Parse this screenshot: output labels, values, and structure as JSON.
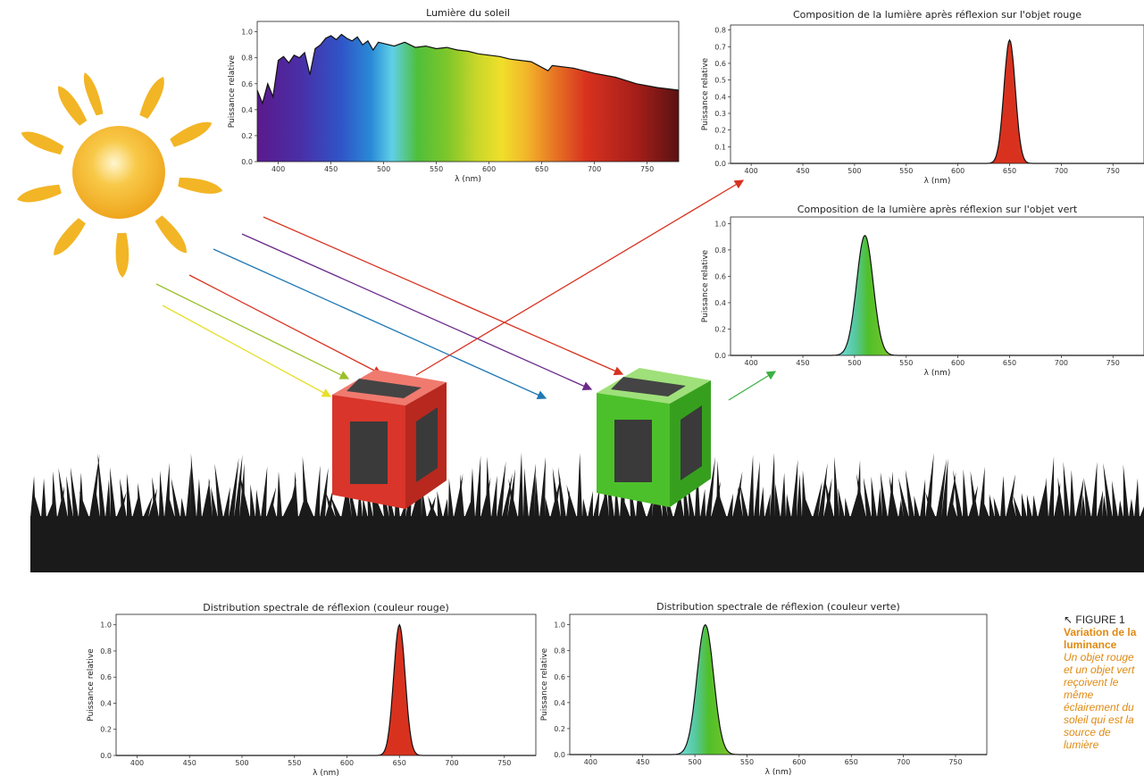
{
  "colors": {
    "sun": "#f2b525",
    "ground": "#1a1a1a",
    "red_cube": "#d9352a",
    "green_cube": "#4cc02a",
    "caption_orange": "#e08a12",
    "arrow_red": "#d8321f",
    "arrow_purple": "#6a2a8a",
    "arrow_blue": "#1f78b4",
    "arrow_yellowgreen": "#9bbf2a",
    "arrow_yellow": "#e6df2a",
    "arrow_green": "#3cb043"
  },
  "icons": [
    "sun-icon",
    "red-cube-icon",
    "green-cube-icon",
    "grass-silhouette"
  ],
  "chart_data": [
    {
      "id": "sun",
      "type": "area",
      "title": "Lumière du soleil",
      "xlabel": "λ (nm)",
      "ylabel": "Puissance relative",
      "xlim": [
        380,
        780
      ],
      "ylim": [
        0,
        1.08
      ],
      "xticks": [
        400,
        450,
        500,
        550,
        600,
        650,
        700,
        750
      ],
      "yticks": [
        0.0,
        0.2,
        0.4,
        0.6,
        0.8,
        1.0
      ],
      "fill": "spectrum",
      "x": [
        380,
        385,
        390,
        395,
        400,
        405,
        410,
        415,
        420,
        425,
        430,
        435,
        440,
        445,
        450,
        455,
        460,
        465,
        470,
        475,
        480,
        485,
        490,
        495,
        500,
        510,
        520,
        530,
        540,
        550,
        560,
        570,
        580,
        590,
        600,
        610,
        620,
        640,
        656,
        660,
        680,
        700,
        720,
        740,
        760,
        780
      ],
      "y": [
        0.55,
        0.45,
        0.6,
        0.5,
        0.78,
        0.81,
        0.76,
        0.82,
        0.8,
        0.84,
        0.67,
        0.87,
        0.9,
        0.95,
        0.97,
        0.94,
        0.98,
        0.95,
        0.93,
        0.96,
        0.9,
        0.93,
        0.86,
        0.92,
        0.91,
        0.89,
        0.92,
        0.88,
        0.89,
        0.87,
        0.88,
        0.86,
        0.85,
        0.83,
        0.82,
        0.81,
        0.79,
        0.77,
        0.7,
        0.74,
        0.72,
        0.68,
        0.65,
        0.6,
        0.57,
        0.55
      ]
    },
    {
      "id": "red_reflect",
      "type": "area",
      "title": "Composition de la lumière après réflexion sur l'objet rouge",
      "xlabel": "λ (nm)",
      "ylabel": "Puissance relative",
      "xlim": [
        380,
        780
      ],
      "ylim": [
        0,
        0.83
      ],
      "xticks": [
        400,
        450,
        500,
        550,
        600,
        650,
        700,
        750
      ],
      "yticks": [
        0.0,
        0.1,
        0.2,
        0.3,
        0.4,
        0.5,
        0.6,
        0.7,
        0.8
      ],
      "peak": {
        "center": 650,
        "sigma": 5.5,
        "amplitude": 0.74
      },
      "fill": "#d8321f"
    },
    {
      "id": "green_reflect",
      "type": "area",
      "title": "Composition de la lumière après réflexion sur l'objet vert",
      "xlabel": "λ (nm)",
      "ylabel": "Puissance relative",
      "xlim": [
        380,
        780
      ],
      "ylim": [
        0,
        1.05
      ],
      "xticks": [
        400,
        450,
        500,
        550,
        600,
        650,
        700,
        750
      ],
      "yticks": [
        0.0,
        0.2,
        0.4,
        0.6,
        0.8,
        1.0
      ],
      "peak": {
        "center": 510,
        "sigma": 8,
        "amplitude": 0.91
      },
      "fill": "greenspec"
    },
    {
      "id": "red_dist",
      "type": "area",
      "title": "Distribution spectrale de réflexion (couleur rouge)",
      "xlabel": "λ (nm)",
      "ylabel": "Puissance relative",
      "xlim": [
        380,
        780
      ],
      "ylim": [
        0,
        1.08
      ],
      "xticks": [
        400,
        450,
        500,
        550,
        600,
        650,
        700,
        750
      ],
      "yticks": [
        0.0,
        0.2,
        0.4,
        0.6,
        0.8,
        1.0
      ],
      "peak": {
        "center": 650,
        "sigma": 5.5,
        "amplitude": 1.0
      },
      "fill": "#d8321f"
    },
    {
      "id": "green_dist",
      "type": "area",
      "title": "Distribution spectrale de réflexion (couleur verte)",
      "xlabel": "λ (nm)",
      "ylabel": "Puissance relative",
      "xlim": [
        380,
        780
      ],
      "ylim": [
        0,
        1.08
      ],
      "xticks": [
        400,
        450,
        500,
        550,
        600,
        650,
        700,
        750
      ],
      "yticks": [
        0.0,
        0.2,
        0.4,
        0.6,
        0.8,
        1.0
      ],
      "peak": {
        "center": 510,
        "sigma": 8,
        "amplitude": 1.0
      },
      "fill": "greenspec"
    }
  ],
  "caption": {
    "figure_label": "FIGURE 1",
    "heading": "Variation de la luminance",
    "body": "Un objet rouge et un objet vert reçoivent le même éclairement du soleil qui est la source de lumière"
  }
}
